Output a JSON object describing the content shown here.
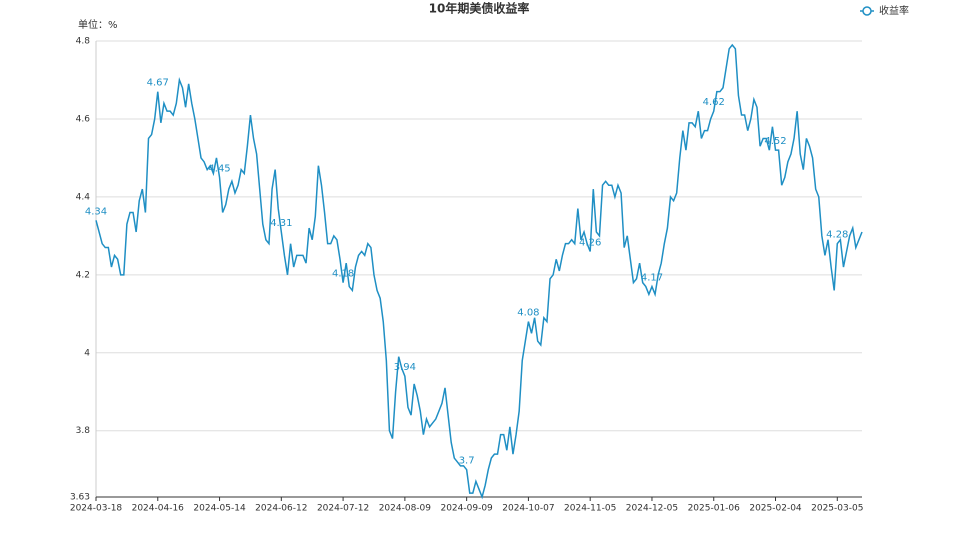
{
  "chart_data": {
    "type": "line",
    "title": "10年期美债收益率",
    "y_axis_label": "单位：%",
    "categories": [
      "2024-03-18",
      null,
      null,
      null,
      null,
      null,
      null,
      null,
      null,
      null,
      null,
      null,
      null,
      null,
      null,
      null,
      null,
      null,
      null,
      null,
      "2024-04-16",
      null,
      null,
      null,
      null,
      null,
      null,
      null,
      null,
      null,
      null,
      null,
      null,
      null,
      null,
      null,
      null,
      null,
      null,
      null,
      "2024-05-14",
      null,
      null,
      null,
      null,
      null,
      null,
      null,
      null,
      null,
      null,
      null,
      null,
      null,
      null,
      null,
      null,
      null,
      null,
      null,
      "2024-06-12",
      null,
      null,
      null,
      null,
      null,
      null,
      null,
      null,
      null,
      null,
      null,
      null,
      null,
      null,
      null,
      null,
      null,
      null,
      null,
      "2024-07-12",
      null,
      null,
      null,
      null,
      null,
      null,
      null,
      null,
      null,
      null,
      null,
      null,
      null,
      null,
      null,
      null,
      null,
      null,
      null,
      "2024-08-09",
      null,
      null,
      null,
      null,
      null,
      null,
      null,
      null,
      null,
      null,
      null,
      null,
      null,
      null,
      null,
      null,
      null,
      null,
      null,
      "2024-09-09",
      null,
      null,
      null,
      null,
      null,
      null,
      null,
      null,
      null,
      null,
      null,
      null,
      null,
      null,
      null,
      null,
      null,
      null,
      null,
      "2024-10-07",
      null,
      null,
      null,
      null,
      null,
      null,
      null,
      null,
      null,
      null,
      null,
      null,
      null,
      null,
      null,
      null,
      null,
      null,
      null,
      "2024-11-05",
      null,
      null,
      null,
      null,
      null,
      null,
      null,
      null,
      null,
      null,
      null,
      null,
      null,
      null,
      null,
      null,
      null,
      null,
      null,
      "2024-12-05",
      null,
      null,
      null,
      null,
      null,
      null,
      null,
      null,
      null,
      null,
      null,
      null,
      null,
      null,
      null,
      null,
      null,
      null,
      null,
      "2025-01-06",
      null,
      null,
      null,
      null,
      null,
      null,
      null,
      null,
      null,
      null,
      null,
      null,
      null,
      null,
      null,
      null,
      null,
      null,
      null,
      "2025-02-04",
      null,
      null,
      null,
      null,
      null,
      null,
      null,
      null,
      null,
      null,
      null,
      null,
      null,
      null,
      null,
      null,
      null,
      null,
      null,
      "2025-03-05",
      null,
      null,
      null,
      null,
      null,
      null,
      null,
      null
    ],
    "series": [
      {
        "name": "收益率",
        "color": "#1f8fc4",
        "values": [
          4.34,
          4.31,
          4.28,
          4.27,
          4.27,
          4.22,
          4.25,
          4.24,
          4.2,
          4.2,
          4.33,
          4.36,
          4.36,
          4.31,
          4.39,
          4.42,
          4.36,
          4.55,
          4.56,
          4.6,
          4.67,
          4.59,
          4.64,
          4.62,
          4.62,
          4.61,
          4.64,
          4.7,
          4.68,
          4.63,
          4.69,
          4.64,
          4.6,
          4.55,
          4.5,
          4.49,
          4.47,
          4.48,
          4.46,
          4.5,
          4.45,
          4.36,
          4.38,
          4.42,
          4.44,
          4.41,
          4.43,
          4.47,
          4.46,
          4.53,
          4.61,
          4.55,
          4.51,
          4.42,
          4.33,
          4.29,
          4.28,
          4.42,
          4.47,
          4.37,
          4.31,
          4.25,
          4.2,
          4.28,
          4.22,
          4.25,
          4.25,
          4.25,
          4.23,
          4.32,
          4.29,
          4.35,
          4.48,
          4.43,
          4.36,
          4.28,
          4.28,
          4.3,
          4.29,
          4.24,
          4.18,
          4.23,
          4.17,
          4.16,
          4.22,
          4.25,
          4.26,
          4.25,
          4.28,
          4.27,
          4.2,
          4.16,
          4.14,
          4.08,
          3.98,
          3.8,
          3.78,
          3.9,
          3.99,
          3.96,
          3.94,
          3.86,
          3.84,
          3.92,
          3.89,
          3.85,
          3.79,
          3.83,
          3.81,
          3.82,
          3.83,
          3.85,
          3.87,
          3.91,
          3.84,
          3.77,
          3.73,
          3.72,
          3.71,
          3.71,
          3.7,
          3.64,
          3.64,
          3.67,
          3.65,
          3.63,
          3.66,
          3.7,
          3.73,
          3.74,
          3.74,
          3.79,
          3.79,
          3.75,
          3.81,
          3.74,
          3.79,
          3.85,
          3.98,
          4.03,
          4.08,
          4.05,
          4.09,
          4.03,
          4.02,
          4.09,
          4.08,
          4.19,
          4.2,
          4.24,
          4.21,
          4.25,
          4.28,
          4.28,
          4.29,
          4.28,
          4.37,
          4.29,
          4.31,
          4.28,
          4.26,
          4.42,
          4.31,
          4.3,
          4.43,
          4.44,
          4.43,
          4.43,
          4.4,
          4.43,
          4.41,
          4.27,
          4.3,
          4.24,
          4.18,
          4.19,
          4.23,
          4.18,
          4.17,
          4.15,
          4.17,
          4.15,
          4.2,
          4.23,
          4.28,
          4.32,
          4.4,
          4.39,
          4.41,
          4.5,
          4.57,
          4.52,
          4.59,
          4.59,
          4.58,
          4.62,
          4.55,
          4.57,
          4.57,
          4.6,
          4.62,
          4.67,
          4.67,
          4.68,
          4.73,
          4.78,
          4.79,
          4.78,
          4.66,
          4.61,
          4.61,
          4.57,
          4.6,
          4.65,
          4.63,
          4.53,
          4.55,
          4.55,
          4.52,
          4.58,
          4.52,
          4.52,
          4.43,
          4.45,
          4.49,
          4.51,
          4.55,
          4.62,
          4.51,
          4.47,
          4.55,
          4.53,
          4.5,
          4.42,
          4.4,
          4.3,
          4.25,
          4.29,
          4.22,
          4.16,
          4.28,
          4.29,
          4.22,
          4.26,
          4.3,
          4.32,
          4.27,
          4.29,
          4.31
        ]
      }
    ],
    "ylim": [
      3.63,
      4.8
    ],
    "yticks": [
      3.63,
      3.8,
      4,
      4.2,
      4.4,
      4.6,
      4.8
    ],
    "grid": true,
    "legend": "top-right"
  }
}
